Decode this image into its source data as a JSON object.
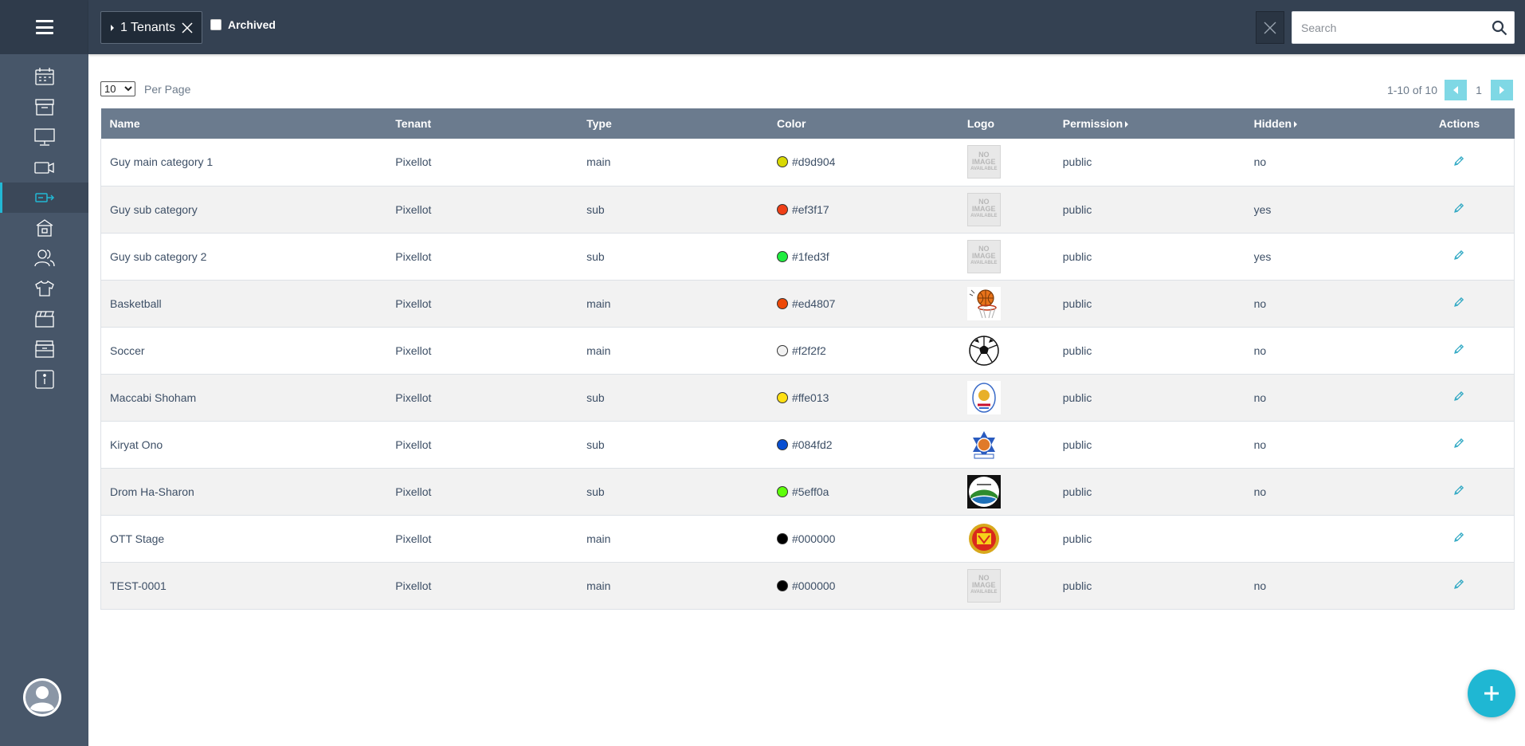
{
  "sidebar": {
    "items": [
      {
        "icon": "calendar-icon"
      },
      {
        "icon": "archive-box-icon"
      },
      {
        "icon": "monitor-icon"
      },
      {
        "icon": "video-camera-icon"
      },
      {
        "icon": "tag-arrow-icon",
        "active": true
      },
      {
        "icon": "team-shirt-icon"
      },
      {
        "icon": "users-icon"
      },
      {
        "icon": "shirt-icon"
      },
      {
        "icon": "clapperboard-icon"
      },
      {
        "icon": "box-icon"
      },
      {
        "icon": "info-icon"
      }
    ],
    "profile_icon": "user-avatar-icon"
  },
  "topbar": {
    "filter_chip": {
      "label": "1 Tenants"
    },
    "archived_label": "Archived",
    "archived_checked": false,
    "search": {
      "placeholder": "Search",
      "value": ""
    }
  },
  "controls": {
    "per_page_value": "10",
    "per_page_options": [
      "10"
    ],
    "per_page_label": "Per Page",
    "range_text": "1-10 of 10",
    "current_page": "1"
  },
  "table": {
    "columns": {
      "name": "Name",
      "tenant": "Tenant",
      "type": "Type",
      "color": "Color",
      "logo": "Logo",
      "permission": "Permission",
      "hidden": "Hidden",
      "actions": "Actions"
    },
    "rows": [
      {
        "name": "Guy main category 1",
        "tenant": "Pixellot",
        "type": "main",
        "color": "#d9d904",
        "logo": "no-image",
        "permission": "public",
        "hidden": "no"
      },
      {
        "name": "Guy sub category",
        "tenant": "Pixellot",
        "type": "sub",
        "color": "#ef3f17",
        "logo": "no-image",
        "permission": "public",
        "hidden": "yes"
      },
      {
        "name": "Guy sub category 2",
        "tenant": "Pixellot",
        "type": "sub",
        "color": "#1fed3f",
        "logo": "no-image",
        "permission": "public",
        "hidden": "yes"
      },
      {
        "name": "Basketball",
        "tenant": "Pixellot",
        "type": "main",
        "color": "#ed4807",
        "logo": "basketball",
        "permission": "public",
        "hidden": "no"
      },
      {
        "name": "Soccer",
        "tenant": "Pixellot",
        "type": "main",
        "color": "#f2f2f2",
        "logo": "soccer",
        "permission": "public",
        "hidden": "no"
      },
      {
        "name": "Maccabi Shoham",
        "tenant": "Pixellot",
        "type": "sub",
        "color": "#ffe013",
        "logo": "maccabi",
        "permission": "public",
        "hidden": "no"
      },
      {
        "name": "Kiryat Ono",
        "tenant": "Pixellot",
        "type": "sub",
        "color": "#084fd2",
        "logo": "kiryat",
        "permission": "public",
        "hidden": "no"
      },
      {
        "name": "Drom Ha-Sharon",
        "tenant": "Pixellot",
        "type": "sub",
        "color": "#5eff0a",
        "logo": "drom",
        "permission": "public",
        "hidden": "no"
      },
      {
        "name": "OTT Stage",
        "tenant": "Pixellot",
        "type": "main",
        "color": "#000000",
        "logo": "crest",
        "permission": "public",
        "hidden": ""
      },
      {
        "name": "TEST-0001",
        "tenant": "Pixellot",
        "type": "main",
        "color": "#000000",
        "logo": "no-image",
        "permission": "public",
        "hidden": "no"
      }
    ],
    "no_image_text": [
      "NO",
      "IMAGE",
      "AVAILABLE"
    ]
  },
  "fab": {
    "icon": "plus-icon"
  },
  "colors": {
    "accent": "#1fb7d3",
    "sidebar": "#475669",
    "topbar": "#344152",
    "header_row": "#6b7b8e"
  }
}
